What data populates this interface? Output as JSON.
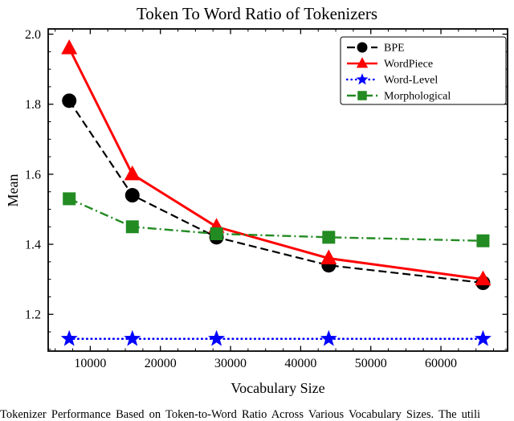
{
  "caption": "Tokenizer Performance Based on Token-to-Word Ratio Across Various Vocabulary Sizes. The utili",
  "chart_data": {
    "type": "line",
    "title": "Token To Word Ratio of Tokenizers",
    "xlabel": "Vocabulary Size",
    "ylabel": "Mean",
    "xlim": [
      4000,
      69500
    ],
    "ylim": [
      1.095,
      2.015
    ],
    "xticks": [
      10000,
      20000,
      30000,
      40000,
      50000,
      60000
    ],
    "yticks": [
      1.2,
      1.4,
      1.6,
      1.8,
      2.0
    ],
    "x": [
      7000,
      16000,
      28000,
      44000,
      66000
    ],
    "grid": false,
    "legend_position": "upper right",
    "series": [
      {
        "name": "BPE",
        "color": "#000000",
        "marker": "circle",
        "linestyle": "dashed",
        "linewidth": 2.2,
        "values": [
          1.81,
          1.54,
          1.42,
          1.34,
          1.29
        ]
      },
      {
        "name": "WordPiece",
        "color": "#ff0000",
        "marker": "triangle",
        "linestyle": "solid",
        "linewidth": 3.0,
        "values": [
          1.96,
          1.6,
          1.45,
          1.36,
          1.3
        ]
      },
      {
        "name": "Word-Level",
        "color": "#0000ff",
        "marker": "star",
        "linestyle": "dotted",
        "linewidth": 2.6,
        "values": [
          1.13,
          1.13,
          1.13,
          1.13,
          1.13
        ]
      },
      {
        "name": "Morphological",
        "color": "#228B22",
        "marker": "square",
        "linestyle": "dashdot",
        "linewidth": 2.4,
        "values": [
          1.53,
          1.45,
          1.43,
          1.42,
          1.41
        ]
      }
    ]
  }
}
